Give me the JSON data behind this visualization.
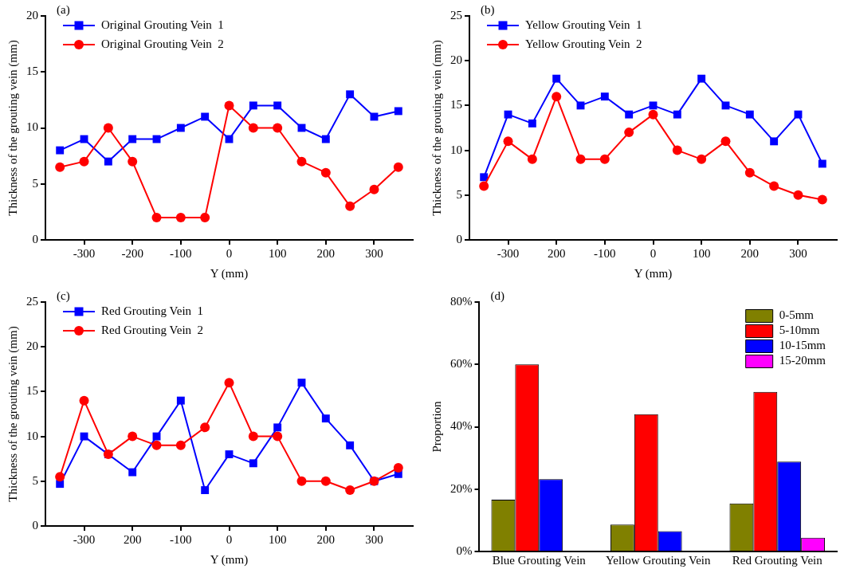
{
  "chart_data": [
    {
      "type": "line",
      "title": "(a)",
      "xlabel": "Y (mm)",
      "ylabel": "Thickness of the grouting vein (mm)",
      "x": [
        -350,
        -300,
        -250,
        -200,
        -150,
        -100,
        -50,
        0,
        50,
        100,
        150,
        200,
        250,
        300,
        350
      ],
      "xlim": [
        -380,
        380
      ],
      "xticks": [
        -300,
        -200,
        -100,
        0,
        100,
        200,
        300
      ],
      "ylim": [
        0,
        20
      ],
      "yticks": [
        0,
        5,
        10,
        15,
        20
      ],
      "grid": false,
      "legend": "top left",
      "line_style": "solid",
      "series": [
        {
          "name": "Original Grouting Vein  1",
          "color": "#0000ff",
          "marker": "square",
          "values": [
            8,
            9,
            7,
            9,
            9,
            10,
            11,
            9,
            12,
            12,
            10,
            9,
            13,
            11,
            11.5
          ]
        },
        {
          "name": "Original Grouting Vein  2",
          "color": "#ff0000",
          "marker": "circle",
          "values": [
            6.5,
            7,
            10,
            7,
            2,
            2,
            2,
            12,
            10,
            10,
            7,
            6,
            3,
            4.5,
            6.5
          ]
        }
      ]
    },
    {
      "type": "line",
      "title": "(b)",
      "xlabel": "Y (mm)",
      "ylabel": "Thickness of the grouting vein (mm)",
      "x": [
        -350,
        -300,
        -250,
        -200,
        -150,
        -100,
        -50,
        0,
        50,
        100,
        150,
        200,
        250,
        300,
        350
      ],
      "xlim": [
        -380,
        380
      ],
      "xticks": [
        -300,
        {
          "value": -200,
          "label": "200"
        },
        -100,
        0,
        100,
        200,
        300
      ],
      "ylim": [
        0,
        25
      ],
      "yticks": [
        0,
        5,
        10,
        15,
        20,
        25
      ],
      "grid": false,
      "legend": "top left",
      "line_style": "solid",
      "series": [
        {
          "name": "Yellow Grouting Vein  1",
          "color": "#0000ff",
          "marker": "square",
          "values": [
            7,
            14,
            13,
            18,
            15,
            16,
            14,
            15,
            14,
            18,
            15,
            14,
            11,
            14,
            8.5
          ]
        },
        {
          "name": "Yellow Grouting Vein  2",
          "color": "#ff0000",
          "marker": "circle",
          "values": [
            6,
            11,
            9,
            16,
            9,
            9,
            12,
            14,
            10,
            9,
            11,
            7.5,
            6,
            5,
            4.5
          ]
        }
      ]
    },
    {
      "type": "line",
      "title": "(c)",
      "xlabel": "Y (mm)",
      "ylabel": "Thickness of the grouting vein (mm)",
      "x": [
        -350,
        -300,
        -250,
        -200,
        -150,
        -100,
        -50,
        0,
        50,
        100,
        150,
        200,
        250,
        300,
        350
      ],
      "xlim": [
        -380,
        380
      ],
      "xticks": [
        -300,
        {
          "value": -200,
          "label": "200"
        },
        -100,
        0,
        100,
        200,
        300
      ],
      "ylim": [
        0,
        25
      ],
      "yticks": [
        0,
        5,
        10,
        15,
        20,
        25
      ],
      "grid": false,
      "legend": "top left",
      "line_style": "solid",
      "series": [
        {
          "name": "Red Grouting Vein  1",
          "color": "#0000ff",
          "marker": "square",
          "values": [
            4.7,
            10,
            8,
            6,
            10,
            14,
            4,
            8,
            7,
            11,
            16,
            12,
            9,
            5,
            5.8
          ]
        },
        {
          "name": "Red Grouting Vein  2",
          "color": "#ff0000",
          "marker": "circle",
          "values": [
            5.5,
            14,
            8,
            10,
            9,
            9,
            11,
            16,
            10,
            10,
            5,
            5,
            4,
            5,
            6.5
          ]
        }
      ]
    },
    {
      "type": "bar",
      "title": "(d)",
      "ylabel": "Proportion",
      "categories": [
        "Blue Grouting Vein",
        "Yellow Grouting Vein",
        "Red Grouting Vein"
      ],
      "ylim": [
        0,
        80
      ],
      "yticks": [
        {
          "value": 0,
          "label": "0%"
        },
        {
          "value": 20,
          "label": "20%"
        },
        {
          "value": 40,
          "label": "40%"
        },
        {
          "value": 60,
          "label": "60%"
        },
        {
          "value": 80,
          "label": "80%"
        }
      ],
      "grid": false,
      "legend": "top right",
      "series": [
        {
          "name": "0-5mm",
          "color": "#808000",
          "values": [
            16.6,
            8.6,
            15.4
          ]
        },
        {
          "name": "5-10mm",
          "color": "#ff0000",
          "values": [
            60,
            44,
            51.2
          ]
        },
        {
          "name": "10-15mm",
          "color": "#0000ff",
          "values": [
            23.2,
            6.5,
            28.8
          ]
        },
        {
          "name": "15-20mm",
          "color": "#ff00ff",
          "values": [
            null,
            null,
            4.4
          ]
        }
      ]
    }
  ]
}
